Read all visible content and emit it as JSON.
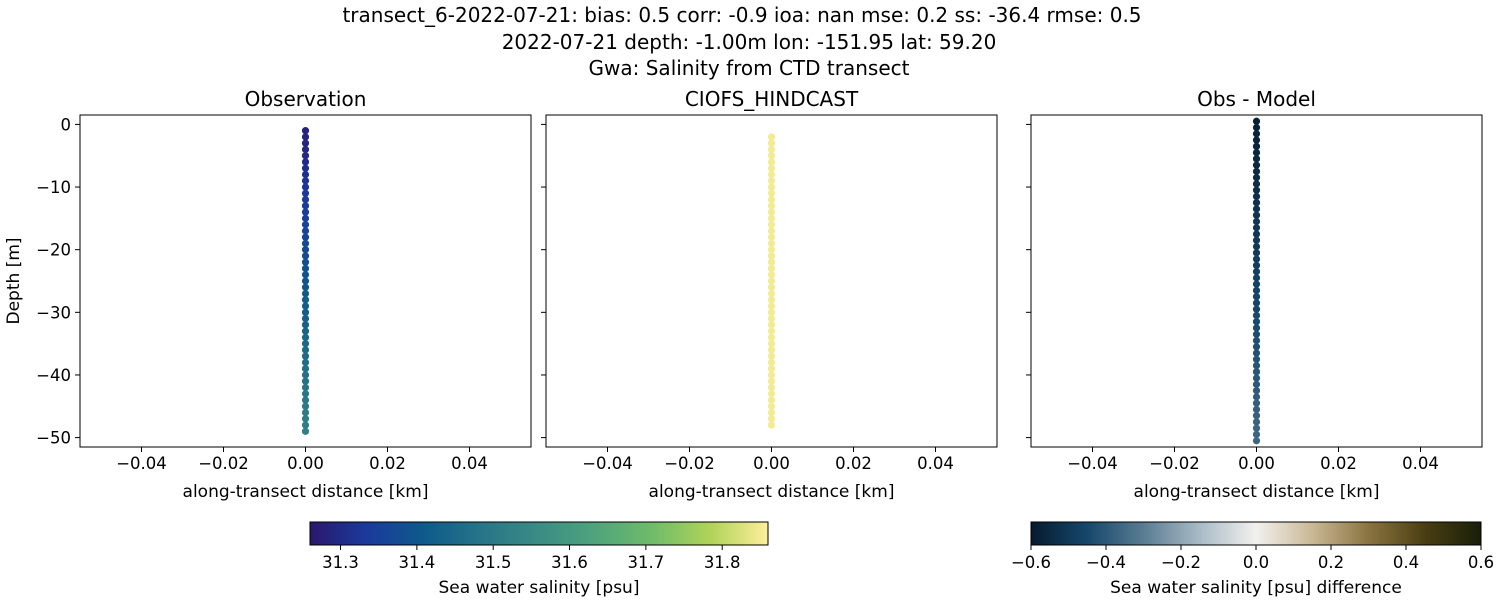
{
  "header": {
    "line1": "transect_6-2022-07-21: bias: 0.5  corr: -0.9  ioa: nan  mse: 0.2  ss: -36.4  rmse: 0.5",
    "line2": "2022-07-21 depth: -1.00m lon: -151.95 lat: 59.20",
    "line3": "Gwa: Salinity from CTD transect"
  },
  "chart_data": [
    {
      "type": "scatter",
      "title": "Observation",
      "xlabel": "along-transect distance [km]",
      "ylabel": "Depth [m]",
      "xlim": [
        -0.055,
        0.055
      ],
      "ylim": [
        -51.5,
        1.5
      ],
      "xticks": [
        -0.04,
        -0.02,
        0.0,
        0.02,
        0.04
      ],
      "xtick_labels": [
        "−0.04",
        "−0.02",
        "0.00",
        "0.02",
        "0.04"
      ],
      "yticks": [
        0,
        -10,
        -20,
        -30,
        -40,
        -50
      ],
      "ytick_labels": [
        "0",
        "−10",
        "−20",
        "−30",
        "−40",
        "−50"
      ],
      "colormap": "haline",
      "clim": [
        31.26,
        31.86
      ],
      "depth_start": -1,
      "depth_end": -49,
      "depth_step": -1,
      "x": 0.0,
      "value_start": 31.28,
      "value_end": 31.52
    },
    {
      "type": "scatter",
      "title": "CIOFS_HINDCAST",
      "xlabel": "along-transect distance [km]",
      "xlim": [
        -0.055,
        0.055
      ],
      "ylim": [
        -51.5,
        1.5
      ],
      "xticks": [
        -0.04,
        -0.02,
        0.0,
        0.02,
        0.04
      ],
      "xtick_labels": [
        "−0.04",
        "−0.02",
        "0.00",
        "0.02",
        "0.04"
      ],
      "yticks": [
        0,
        -10,
        -20,
        -30,
        -40,
        -50
      ],
      "colormap": "haline",
      "clim": [
        31.26,
        31.86
      ],
      "depth_start": -2,
      "depth_end": -48,
      "depth_step": -1,
      "x": 0.0,
      "value_start": 31.85,
      "value_end": 31.85
    },
    {
      "type": "scatter",
      "title": "Obs - Model",
      "xlabel": "along-transect distance [km]",
      "xlim": [
        -0.055,
        0.055
      ],
      "ylim": [
        -51.5,
        1.5
      ],
      "xticks": [
        -0.04,
        -0.02,
        0.0,
        0.02,
        0.04
      ],
      "xtick_labels": [
        "−0.04",
        "−0.02",
        "0.00",
        "0.02",
        "0.04"
      ],
      "yticks": [
        0,
        -10,
        -20,
        -30,
        -40,
        -50
      ],
      "colormap": "diff",
      "clim": [
        -0.6,
        0.6
      ],
      "depth_start": 0.5,
      "depth_end": -50.5,
      "depth_step": -1,
      "x": 0.0,
      "value_start": -0.58,
      "value_end": -0.36
    }
  ],
  "colorbars": [
    {
      "label": "Sea water salinity [psu]",
      "colormap": "haline",
      "range": [
        31.26,
        31.86
      ],
      "ticks": [
        31.3,
        31.4,
        31.5,
        31.6,
        31.7,
        31.8
      ],
      "tick_labels": [
        "31.3",
        "31.4",
        "31.5",
        "31.6",
        "31.7",
        "31.8"
      ]
    },
    {
      "label": "Sea water salinity [psu] difference",
      "colormap": "diff",
      "range": [
        -0.6,
        0.6
      ],
      "ticks": [
        -0.6,
        -0.4,
        -0.2,
        0.0,
        0.2,
        0.4,
        0.6
      ],
      "tick_labels": [
        "−0.6",
        "−0.4",
        "−0.2",
        "0.0",
        "0.2",
        "0.4",
        "0.6"
      ]
    }
  ],
  "colormaps": {
    "haline": [
      "#2a186c",
      "#1b3a9c",
      "#0e5a8b",
      "#277588",
      "#3a8c84",
      "#50a47c",
      "#70bc6a",
      "#b0d35a",
      "#fdef9a"
    ],
    "diff": [
      "#061a2e",
      "#16476b",
      "#5a7c93",
      "#a8bbc6",
      "#f2f0ee",
      "#c9b896",
      "#8a7440",
      "#4a3e12",
      "#191e0a"
    ]
  }
}
